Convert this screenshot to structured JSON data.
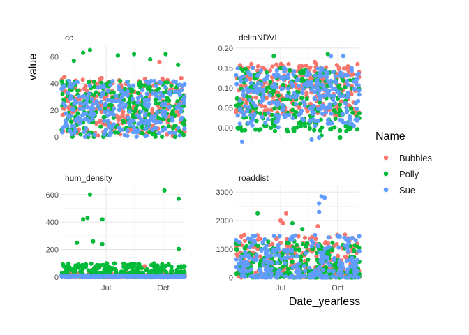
{
  "chart_data": {
    "type": "scatter",
    "layout": "facet_wrap",
    "ylabel": "value",
    "xlabel": "Date_yearless",
    "grid": true,
    "legend": {
      "title": "Name",
      "position": "right",
      "series": [
        {
          "name": "Bubbles",
          "color": "#F8766D"
        },
        {
          "name": "Polly",
          "color": "#00BA38"
        },
        {
          "name": "Sue",
          "color": "#619CFF"
        }
      ]
    },
    "x_axis": {
      "type": "date",
      "range": [
        "2000-04-20",
        "2000-11-05"
      ],
      "tick_values": [
        "2000-07-01",
        "2000-10-01"
      ],
      "tick_labels": [
        "Jul",
        "Oct"
      ],
      "labels_shown_on": "bottom row"
    },
    "facets": [
      {
        "title": "cc",
        "ylim": [
          -2,
          68
        ],
        "y_ticks": [
          0,
          20,
          40,
          60
        ],
        "y_tick_labels": [
          "0",
          "20",
          "40",
          "60"
        ],
        "series": [
          {
            "name": "Bubbles",
            "band": [
              0,
              44
            ],
            "peak_points": [
              [
                "2000-04-25",
                45
              ],
              [
                "2000-10-30",
                44
              ],
              [
                "2000-09-25",
                56
              ]
            ]
          },
          {
            "name": "Polly",
            "band": [
              0,
              42
            ],
            "peak_points": [
              [
                "2000-05-10",
                57
              ],
              [
                "2000-05-25",
                63
              ],
              [
                "2000-06-05",
                65
              ],
              [
                "2000-07-20",
                61
              ],
              [
                "2000-08-15",
                62
              ],
              [
                "2000-09-10",
                58
              ],
              [
                "2000-10-05",
                62
              ],
              [
                "2000-10-25",
                54
              ]
            ]
          },
          {
            "name": "Sue",
            "band": [
              0,
              42
            ]
          }
        ]
      },
      {
        "title": "deltaNDVI",
        "ylim": [
          -0.03,
          0.205
        ],
        "y_ticks": [
          0,
          0.05,
          0.1,
          0.15,
          0.2
        ],
        "y_tick_labels": [
          "0.00",
          "0.05",
          "0.10",
          "0.15",
          "0.20"
        ],
        "series": [
          {
            "name": "Bubbles",
            "band": [
              0.03,
              0.16
            ],
            "peak_points": [
              [
                "2000-05-15",
                0.16
              ],
              [
                "2000-08-25",
                0.165
              ],
              [
                "2000-09-05",
                0.15
              ]
            ]
          },
          {
            "name": "Polly",
            "band": [
              -0.01,
              0.15
            ],
            "peak_points": [
              [
                "2000-06-20",
                0.18
              ],
              [
                "2000-09-15",
                0.185
              ],
              [
                "2000-09-05",
                -0.02
              ],
              [
                "2000-10-05",
                -0.025
              ]
            ]
          },
          {
            "name": "Sue",
            "band": [
              0.0,
              0.15
            ],
            "peak_points": [
              [
                "2000-09-20",
                0.18
              ],
              [
                "2000-10-10",
                0.18
              ],
              [
                "2000-08-20",
                -0.03
              ],
              [
                "2000-09-01",
                -0.025
              ],
              [
                "2000-04-30",
                -0.035
              ]
            ]
          }
        ]
      },
      {
        "title": "hum_density",
        "ylim": [
          -15,
          660
        ],
        "y_ticks": [
          0,
          200,
          400,
          600
        ],
        "y_tick_labels": [
          "0",
          "200",
          "400",
          "600"
        ],
        "series": [
          {
            "name": "Bubbles",
            "band": [
              0,
              30
            ],
            "peak_points": [
              [
                "2000-09-01",
                80
              ],
              [
                "2000-09-20",
                70
              ]
            ]
          },
          {
            "name": "Polly",
            "band": [
              0,
              100
            ],
            "peak_points": [
              [
                "2000-05-15",
                250
              ],
              [
                "2000-05-25",
                420
              ],
              [
                "2000-06-01",
                430
              ],
              [
                "2000-06-05",
                600
              ],
              [
                "2000-06-10",
                260
              ],
              [
                "2000-06-25",
                240
              ],
              [
                "2000-06-25",
                420
              ],
              [
                "2000-10-03",
                630
              ],
              [
                "2000-10-26",
                570
              ],
              [
                "2000-10-26",
                205
              ]
            ]
          },
          {
            "name": "Sue",
            "band": [
              0,
              12
            ]
          }
        ]
      },
      {
        "title": "roaddist",
        "ylim": [
          -60,
          3200
        ],
        "y_ticks": [
          0,
          1000,
          2000,
          3000
        ],
        "y_tick_labels": [
          "0",
          "1000",
          "2000",
          "3000"
        ],
        "series": [
          {
            "name": "Bubbles",
            "band": [
              0,
              1500
            ],
            "peak_points": [
              [
                "2000-07-01",
                2000
              ],
              [
                "2000-07-10",
                2250
              ],
              [
                "2000-07-05",
                1900
              ],
              [
                "2000-08-30",
                1800
              ]
            ]
          },
          {
            "name": "Polly",
            "band": [
              0,
              1300
            ],
            "peak_points": [
              [
                "2000-05-25",
                2250
              ],
              [
                "2000-07-20",
                1900
              ],
              [
                "2000-08-05",
                1700
              ]
            ]
          },
          {
            "name": "Sue",
            "band": [
              0,
              1500
            ],
            "peak_points": [
              [
                "2000-09-01",
                2600
              ],
              [
                "2000-09-05",
                2850
              ],
              [
                "2000-09-10",
                2800
              ],
              [
                "2000-09-01",
                2300
              ],
              [
                "2000-10-30",
                1300
              ]
            ]
          }
        ]
      }
    ]
  }
}
